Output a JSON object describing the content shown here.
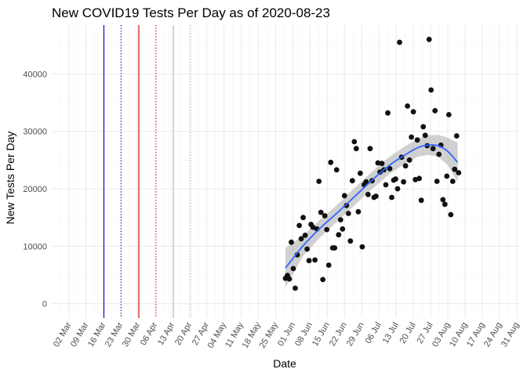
{
  "chart_data": {
    "type": "scatter",
    "title": "New COVID19 Tests Per Day as of 2020-08-23",
    "xlabel": "Date",
    "ylabel": "New Tests Per Day",
    "x_range_days": [
      -7,
      183
    ],
    "ylim": [
      -2500,
      48500
    ],
    "y_ticks": [
      0,
      10000,
      20000,
      30000,
      40000
    ],
    "x_ticks": [
      {
        "label": "02 Mar",
        "day": 0
      },
      {
        "label": "09 Mar",
        "day": 7
      },
      {
        "label": "16 Mar",
        "day": 14
      },
      {
        "label": "23 Mar",
        "day": 21
      },
      {
        "label": "30 Mar",
        "day": 28
      },
      {
        "label": "06 Apr",
        "day": 35
      },
      {
        "label": "13 Apr",
        "day": 42
      },
      {
        "label": "20 Apr",
        "day": 49
      },
      {
        "label": "27 Apr",
        "day": 56
      },
      {
        "label": "04 May",
        "day": 63
      },
      {
        "label": "11 May",
        "day": 70
      },
      {
        "label": "18 May",
        "day": 77
      },
      {
        "label": "25 May",
        "day": 84
      },
      {
        "label": "01 Jun",
        "day": 91
      },
      {
        "label": "08 Jun",
        "day": 98
      },
      {
        "label": "15 Jun",
        "day": 105
      },
      {
        "label": "22 Jun",
        "day": 112
      },
      {
        "label": "29 Jun",
        "day": 119
      },
      {
        "label": "06 Jul",
        "day": 126
      },
      {
        "label": "13 Jul",
        "day": 133
      },
      {
        "label": "20 Jul",
        "day": 140
      },
      {
        "label": "27 Jul",
        "day": 147
      },
      {
        "label": "03 Aug",
        "day": 154
      },
      {
        "label": "10 Aug",
        "day": 161
      },
      {
        "label": "17 Aug",
        "day": 168
      },
      {
        "label": "24 Aug",
        "day": 175
      },
      {
        "label": "31 Aug",
        "day": 182
      }
    ],
    "reference_lines": [
      {
        "day": 14.2,
        "color": "#0000cc",
        "style": "solid"
      },
      {
        "day": 21.2,
        "color": "#0000cc",
        "style": "dotted"
      },
      {
        "day": 28.4,
        "color": "#cc0000",
        "style": "solid"
      },
      {
        "day": 35.4,
        "color": "#cc0000",
        "style": "dotted"
      },
      {
        "day": 42.5,
        "color": "#f2a6a6",
        "style": "solid"
      },
      {
        "day": 49.6,
        "color": "#f2a6a6",
        "style": "dotted"
      }
    ],
    "points": [
      [
        88,
        4400
      ],
      [
        88.8,
        4900
      ],
      [
        89.6,
        4300
      ],
      [
        90.4,
        10700
      ],
      [
        91.2,
        6100
      ],
      [
        92,
        2700
      ],
      [
        92.8,
        8500
      ],
      [
        93.6,
        13600
      ],
      [
        94.4,
        11300
      ],
      [
        95.2,
        15000
      ],
      [
        96,
        11900
      ],
      [
        96.8,
        9500
      ],
      [
        97.6,
        7500
      ],
      [
        98.4,
        13800
      ],
      [
        99.2,
        13300
      ],
      [
        100,
        7600
      ],
      [
        100.8,
        13000
      ],
      [
        101.6,
        21300
      ],
      [
        102.4,
        15900
      ],
      [
        103.2,
        4200
      ],
      [
        104,
        15300
      ],
      [
        104.8,
        12900
      ],
      [
        105.6,
        6700
      ],
      [
        106.4,
        24600
      ],
      [
        107.2,
        9700
      ],
      [
        108,
        9700
      ],
      [
        108.8,
        23300
      ],
      [
        109.6,
        12000
      ],
      [
        110.4,
        14600
      ],
      [
        111.2,
        13000
      ],
      [
        112,
        18800
      ],
      [
        112.8,
        17100
      ],
      [
        113.6,
        15700
      ],
      [
        114.4,
        10900
      ],
      [
        115.2,
        21400
      ],
      [
        116,
        28200
      ],
      [
        116.8,
        27000
      ],
      [
        117.6,
        16000
      ],
      [
        118.4,
        22700
      ],
      [
        119.2,
        9900
      ],
      [
        120,
        20700
      ],
      [
        120.8,
        21200
      ],
      [
        121.6,
        19000
      ],
      [
        122.4,
        27000
      ],
      [
        123.2,
        21400
      ],
      [
        124,
        18500
      ],
      [
        124.8,
        18700
      ],
      [
        125.6,
        24500
      ],
      [
        126.4,
        22900
      ],
      [
        127.2,
        24400
      ],
      [
        128,
        23300
      ],
      [
        128.8,
        20700
      ],
      [
        129.6,
        33200
      ],
      [
        130.4,
        23500
      ],
      [
        131.2,
        18500
      ],
      [
        132,
        21500
      ],
      [
        132.8,
        21700
      ],
      [
        133.6,
        20000
      ],
      [
        134.4,
        45500
      ],
      [
        135.2,
        25500
      ],
      [
        136,
        21200
      ],
      [
        136.8,
        24000
      ],
      [
        137.6,
        34400
      ],
      [
        138.4,
        25000
      ],
      [
        139.2,
        29000
      ],
      [
        140,
        33400
      ],
      [
        140.8,
        21600
      ],
      [
        141.6,
        28500
      ],
      [
        142.4,
        21800
      ],
      [
        143.2,
        18000
      ],
      [
        144,
        30800
      ],
      [
        144.8,
        29300
      ],
      [
        145.6,
        27500
      ],
      [
        146.4,
        46000
      ],
      [
        147.2,
        37200
      ],
      [
        148,
        27000
      ],
      [
        148.8,
        33600
      ],
      [
        149.6,
        21300
      ],
      [
        150.4,
        26000
      ],
      [
        151.2,
        27600
      ],
      [
        152,
        18100
      ],
      [
        152.8,
        17300
      ],
      [
        153.6,
        22200
      ],
      [
        154.4,
        32900
      ],
      [
        155.2,
        15500
      ],
      [
        156,
        21300
      ],
      [
        156.8,
        23400
      ],
      [
        157.6,
        29200
      ],
      [
        158.4,
        22800
      ]
    ],
    "smooth": [
      {
        "day": 88,
        "y": 6200,
        "lo": 2800,
        "hi": 9700
      },
      {
        "day": 95,
        "y": 10000,
        "lo": 8200,
        "hi": 11800
      },
      {
        "day": 102,
        "y": 13100,
        "lo": 11500,
        "hi": 14600
      },
      {
        "day": 109,
        "y": 15800,
        "lo": 14300,
        "hi": 17200
      },
      {
        "day": 116,
        "y": 18600,
        "lo": 17100,
        "hi": 20100
      },
      {
        "day": 123,
        "y": 21400,
        "lo": 19900,
        "hi": 22900
      },
      {
        "day": 130,
        "y": 24000,
        "lo": 22500,
        "hi": 25500
      },
      {
        "day": 137,
        "y": 26000,
        "lo": 24500,
        "hi": 27500
      },
      {
        "day": 142,
        "y": 27200,
        "lo": 25600,
        "hi": 28800
      },
      {
        "day": 146,
        "y": 27600,
        "lo": 25900,
        "hi": 29300
      },
      {
        "day": 150,
        "y": 27500,
        "lo": 25600,
        "hi": 29400
      },
      {
        "day": 154,
        "y": 26500,
        "lo": 24100,
        "hi": 28900
      },
      {
        "day": 158,
        "y": 24600,
        "lo": 21200,
        "hi": 28000
      }
    ],
    "colors": {
      "point": "#111111",
      "smooth_line": "#3366ff",
      "ribbon": "#999999",
      "grid_major": "#ebebeb",
      "grid_minor": "#f4f4f4",
      "background": "#ffffff"
    }
  }
}
